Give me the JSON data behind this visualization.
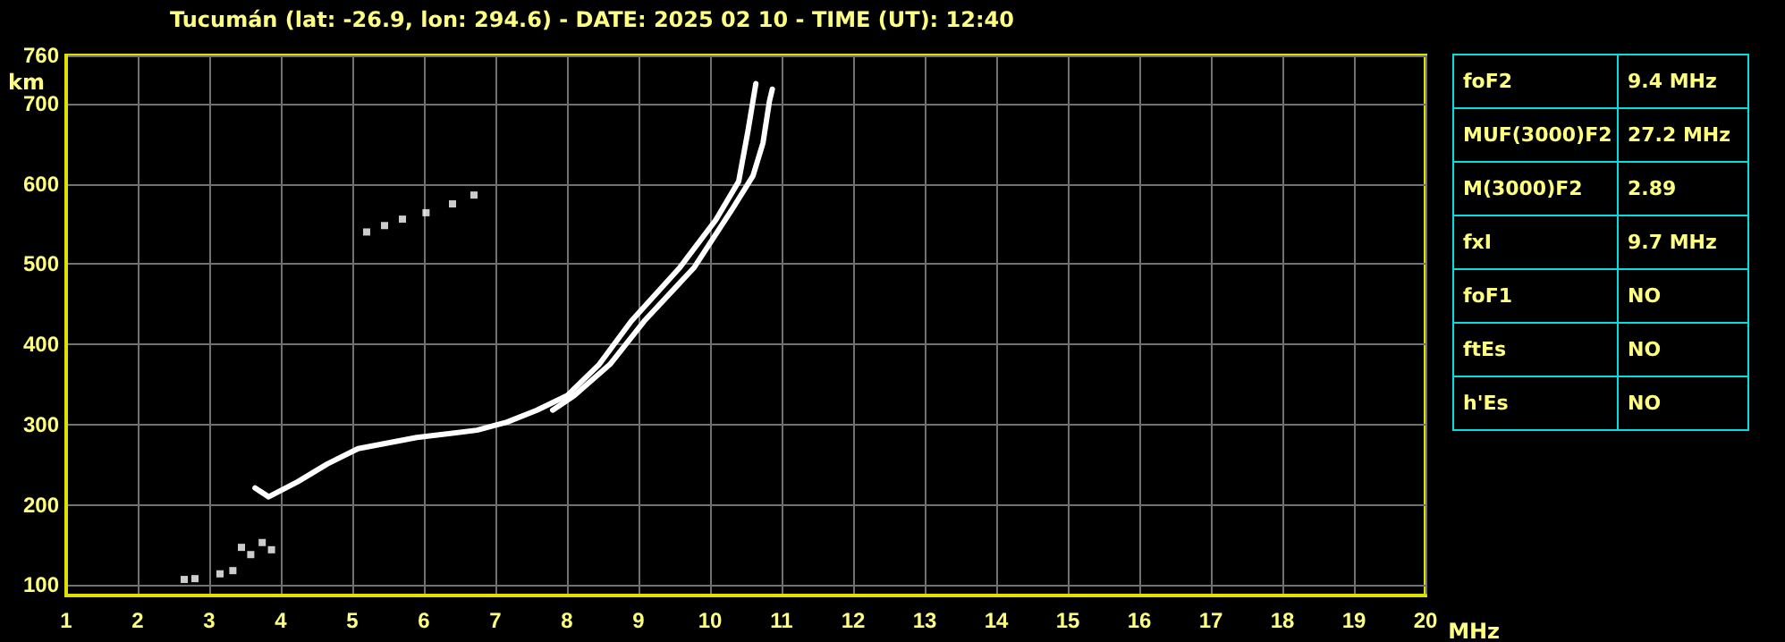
{
  "chart_data": [
    {
      "type": "line",
      "title": "Tucumán (lat: -26.9, lon: 294.6) - DATE: 2025 02 10 - TIME (UT): 12:40",
      "xlabel": "MHz",
      "ylabel": "km",
      "xlim": [
        1,
        20
      ],
      "xticks": [
        1,
        2,
        3,
        4,
        5,
        6,
        7,
        8,
        9,
        10,
        11,
        12,
        13,
        14,
        15,
        16,
        17,
        18,
        19,
        20
      ],
      "ylim": [
        87,
        760
      ],
      "yticks": [
        100,
        200,
        300,
        400,
        500,
        600,
        700,
        760
      ],
      "grid": true,
      "line_style": "solid",
      "series": [
        {
          "type": "line",
          "marker": "none",
          "color": "#ffffff",
          "x": [
            3.64,
            3.83,
            4.24,
            4.65,
            5.08,
            5.9,
            6.74,
            7.16,
            7.58,
            8.0,
            8.45,
            8.9,
            9.58,
            10.08,
            10.4,
            10.53,
            10.64
          ],
          "values": [
            221,
            210,
            229,
            251,
            270,
            284,
            293,
            303,
            318,
            336,
            375,
            429,
            496,
            555,
            603,
            666,
            725
          ]
        },
        {
          "type": "line",
          "marker": "none",
          "color": "#ffffff",
          "x": [
            7.8,
            8.1,
            8.6,
            9.08,
            9.78,
            10.32,
            10.6,
            10.74,
            10.83,
            10.87
          ],
          "values": [
            318,
            336,
            375,
            429,
            496,
            570,
            610,
            651,
            703,
            718
          ]
        },
        {
          "type": "scatter",
          "marker": "square",
          "color": "#ffffff",
          "x": [
            2.65,
            2.8,
            3.15,
            3.33,
            3.45,
            3.58,
            3.74,
            3.87,
            5.2,
            5.45,
            5.7,
            6.03,
            6.4,
            6.7
          ],
          "values": [
            107,
            108,
            114,
            118,
            147,
            138,
            153,
            144,
            540,
            548,
            556,
            564,
            575,
            586
          ]
        }
      ]
    },
    {
      "type": "other",
      "annotations": [
        "foF2",
        "9.4 MHz",
        "MUF(3000)F2",
        "27.2 MHz",
        "M(3000)F2",
        "2.89",
        "fxI",
        "9.7 MHz",
        "foF1",
        "NO",
        "ftEs",
        "NO",
        "h'Es",
        "NO"
      ]
    }
  ]
}
